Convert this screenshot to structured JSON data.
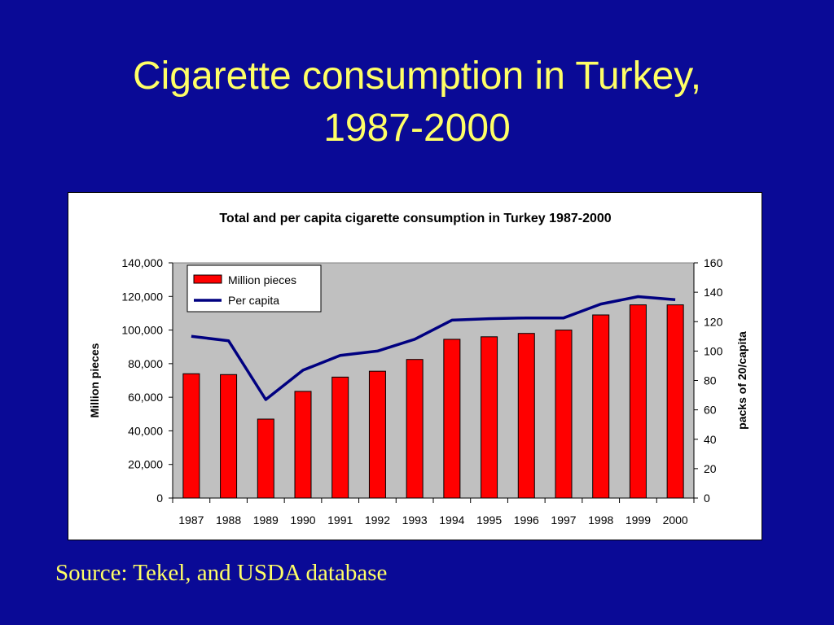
{
  "slide": {
    "title_line1": "Cigarette consumption in Turkey,",
    "title_line2": "1987-2000",
    "source": "Source: Tekel, and USDA database"
  },
  "colors": {
    "background": "#0a0a96",
    "title": "#ffff66",
    "plot_area": "#c0c0c0",
    "bar": "#ff0000",
    "line": "#000080"
  },
  "chart_data": {
    "type": "bar",
    "title": "Total and per capita cigarette consumption in Turkey 1987-2000",
    "categories": [
      "1987",
      "1988",
      "1989",
      "1990",
      "1991",
      "1992",
      "1993",
      "1994",
      "1995",
      "1996",
      "1997",
      "1998",
      "1999",
      "2000"
    ],
    "series": [
      {
        "name": "Million pieces",
        "type": "bar",
        "axis": "left",
        "values": [
          74000,
          73500,
          47000,
          63500,
          72000,
          75500,
          82500,
          94500,
          96000,
          98000,
          100000,
          109000,
          115000,
          115000
        ]
      },
      {
        "name": "Per capita",
        "type": "line",
        "axis": "right",
        "values": [
          110,
          107,
          67,
          87,
          97,
          100,
          108,
          121,
          122,
          122.5,
          122.5,
          132,
          137,
          135
        ]
      }
    ],
    "ylabel": "Million pieces",
    "ylim": [
      0,
      140000
    ],
    "yticks": [
      "0",
      "20,000",
      "40,000",
      "60,000",
      "80,000",
      "100,000",
      "120,000",
      "140,000"
    ],
    "y2label": "packs of 20/capita",
    "y2lim": [
      0,
      160
    ],
    "y2ticks": [
      "0",
      "20",
      "40",
      "60",
      "80",
      "100",
      "120",
      "140",
      "160"
    ],
    "legend_position": "top-left",
    "grid": false
  }
}
